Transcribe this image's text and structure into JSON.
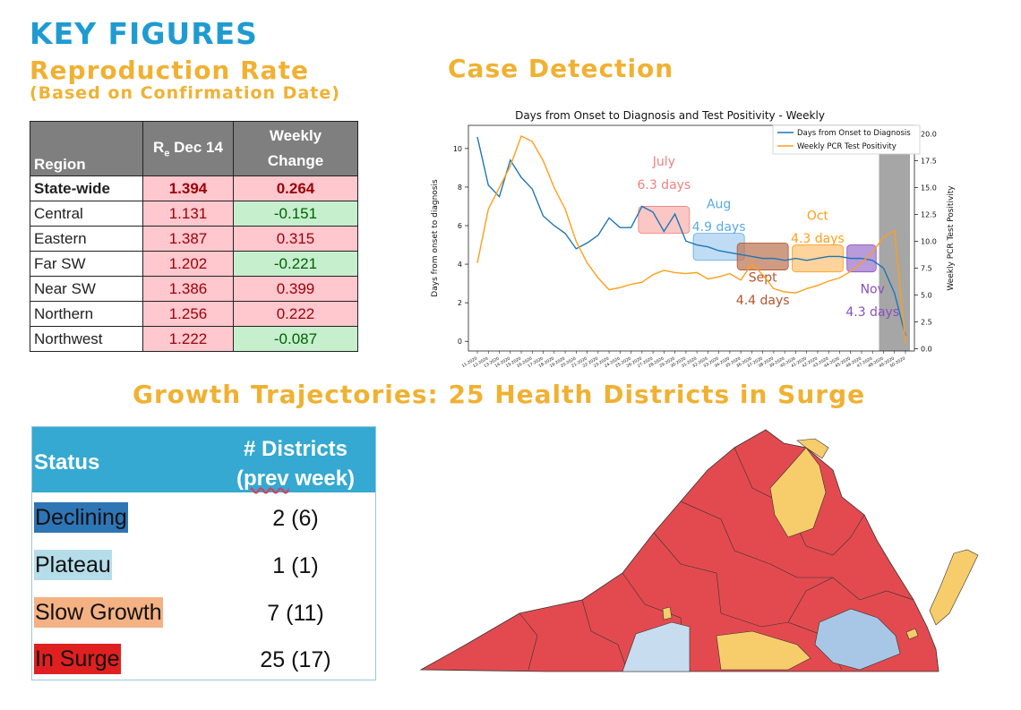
{
  "headings": {
    "key_figures": "KEY FIGURES",
    "repro_rate": "Reproduction Rate",
    "repro_sub": "(Based on Confirmation Date)",
    "case_detection": "Case Detection",
    "growth": "Growth Trajectories: 25 Health Districts in Surge"
  },
  "repro_table": {
    "col_region": "Region",
    "col_r_main": "R",
    "col_r_sub": "e",
    "col_r_rest": " Dec 14",
    "col_weekly_1": "Weekly",
    "col_weekly_2": "Change",
    "rows": [
      {
        "region": "State-wide",
        "r": "1.394",
        "change": "0.264"
      },
      {
        "region": "Central",
        "r": "1.131",
        "change": "-0.151"
      },
      {
        "region": "Eastern",
        "r": "1.387",
        "change": "0.315"
      },
      {
        "region": "Far SW",
        "r": "1.202",
        "change": "-0.221"
      },
      {
        "region": "Near SW",
        "r": "1.386",
        "change": "0.399"
      },
      {
        "region": "Northern",
        "r": "1.256",
        "change": "0.222"
      },
      {
        "region": "Northwest",
        "r": "1.222",
        "change": "-0.087"
      }
    ]
  },
  "growth_table": {
    "col_status": "Status",
    "col_districts_1": "# Districts",
    "col_districts_2_a": "(",
    "col_districts_2_b": "prev",
    "col_districts_2_c": " week)",
    "rows": [
      {
        "status": "Declining",
        "count": "2 (6)",
        "color": "#2e75b6"
      },
      {
        "status": "Plateau",
        "count": "1 (1)",
        "color": "#b4dde9"
      },
      {
        "status": "Slow Growth",
        "count": "7 (11)",
        "color": "#f4b183"
      },
      {
        "status": "In Surge",
        "count": "25 (17)",
        "color": "#e02020"
      }
    ]
  },
  "chart_data": {
    "type": "line",
    "title": "Days from Onset to Diagnosis and Test Positivity - Weekly",
    "ylabel": "Days from onset to diagnosis",
    "y2label": "Weekly PCR Test Positivity",
    "ylim": [
      -0.5,
      11.2
    ],
    "y2lim": [
      -0.2,
      20.8
    ],
    "yticks": [
      0,
      2,
      4,
      6,
      8,
      10
    ],
    "y2ticks": [
      "0.0",
      "2.5",
      "5.0",
      "7.5",
      "10.0",
      "12.5",
      "15.0",
      "17.5",
      "20.0"
    ],
    "x_ticks": [
      "11-2020",
      "12-2020",
      "13-2020",
      "14-2020",
      "15-2020",
      "16-2020",
      "17-2020",
      "18-2020",
      "19-2020",
      "20-2020",
      "21-2020",
      "22-2020",
      "23-2020",
      "24-2020",
      "25-2020",
      "26-2020",
      "27-2020",
      "28-2020",
      "29-2020",
      "30-2020",
      "31-2020",
      "32-2020",
      "33-2020",
      "34-2020",
      "35-2020",
      "36-2020",
      "37-2020",
      "38-2020",
      "39-2020",
      "40-2020",
      "41-2020",
      "42-2020",
      "43-2020",
      "44-2020",
      "45-2020",
      "46-2020",
      "47-2020",
      "48-2020",
      "49-2020",
      "50-2020"
    ],
    "legend_position": "top-right",
    "series": [
      {
        "name": "Days from Onset to Diagnosis",
        "color": "#1f77b4",
        "axis": "left",
        "values": [
          10.6,
          8.1,
          7.5,
          9.4,
          8.5,
          7.9,
          6.5,
          6.0,
          5.6,
          4.8,
          5.1,
          5.5,
          6.4,
          5.9,
          5.9,
          7.0,
          6.7,
          5.7,
          6.6,
          5.2,
          5.0,
          4.9,
          4.7,
          4.6,
          4.5,
          4.4,
          4.3,
          4.3,
          4.2,
          4.3,
          4.2,
          4.3,
          4.4,
          4.4,
          4.3,
          4.3,
          4.2,
          3.8,
          2.5,
          0.3
        ]
      },
      {
        "name": "Weekly PCR Test Positivity",
        "color": "#ff9f1a",
        "axis": "right",
        "values": [
          8.0,
          13.0,
          15.0,
          17.0,
          19.8,
          19.3,
          17.5,
          15.0,
          13.0,
          10.0,
          8.0,
          6.6,
          5.5,
          5.7,
          6.0,
          6.2,
          6.9,
          7.3,
          7.1,
          7.0,
          7.1,
          6.5,
          6.7,
          7.0,
          6.4,
          7.9,
          6.9,
          5.6,
          5.3,
          5.2,
          5.6,
          5.9,
          6.3,
          6.6,
          7.2,
          8.0,
          9.0,
          10.4,
          11.0,
          0.5
        ]
      }
    ],
    "annotations": [
      {
        "label": "July",
        "value": "6.3 days",
        "color": "#f08080"
      },
      {
        "label": "Aug",
        "value": "4.9 days",
        "color": "#5aa9e6"
      },
      {
        "label": "Sept",
        "value": "4.4 days",
        "color": "#b5532c"
      },
      {
        "label": "Oct",
        "value": "4.3 days",
        "color": "#ff9f1a"
      },
      {
        "label": "Nov",
        "value": "4.3 days",
        "color": "#8a4fc0"
      }
    ],
    "shaded_region_weeks": [
      "48-2020",
      "50-2020"
    ]
  },
  "map": {
    "colors": {
      "surge": "#e34a4f",
      "slow": "#f7cd6b",
      "plateau": "#c8dcef",
      "declining": "#a8c7e6"
    }
  }
}
